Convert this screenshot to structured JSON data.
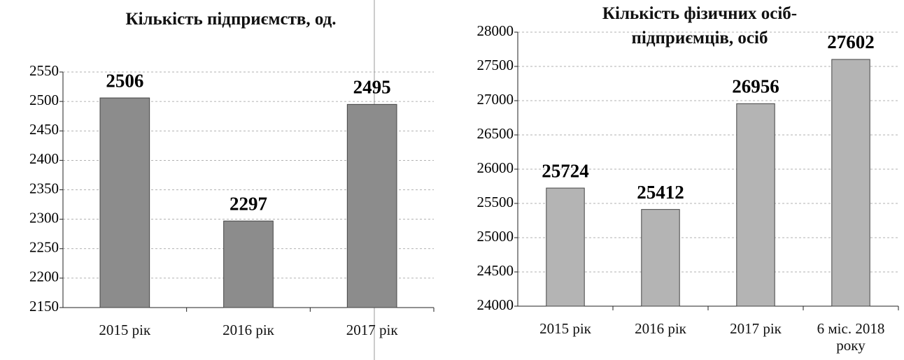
{
  "chart_data": [
    {
      "type": "bar",
      "title": "Кількість підприємств, од.",
      "categories": [
        "2015 рік",
        "2016 рік",
        "2017 рік"
      ],
      "values": [
        2506,
        2297,
        2495
      ],
      "color": "#8c8c8c",
      "ylim": [
        2150,
        2550
      ],
      "yticks": [
        2150,
        2200,
        2250,
        2300,
        2350,
        2400,
        2450,
        2500,
        2550
      ],
      "grid": true
    },
    {
      "type": "bar",
      "title": "Кількість фізичних осіб-підприємців, осіб",
      "categories": [
        "2015 рік",
        "2016 рік",
        "2017 рік",
        "6 міс. 2018 року"
      ],
      "values": [
        25724,
        25412,
        26956,
        27602
      ],
      "color": "#b4b4b4",
      "ylim": [
        24000,
        28000
      ],
      "yticks": [
        24000,
        24500,
        25000,
        25500,
        26000,
        26500,
        27000,
        27500,
        28000
      ],
      "grid": true
    }
  ]
}
